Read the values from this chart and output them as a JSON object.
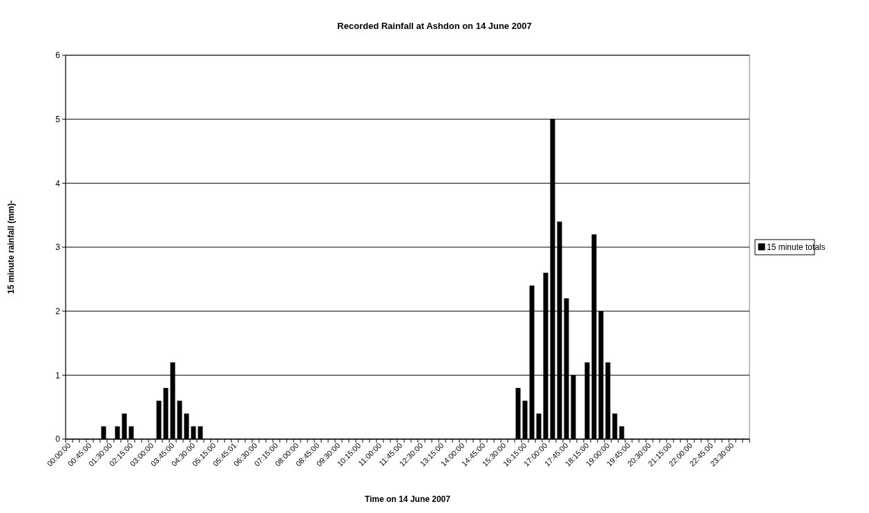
{
  "chart_data": {
    "type": "bar",
    "title": "Recorded Rainfall at Ashdon on 14 June 2007",
    "xlabel": "Time on 14 June 2007",
    "ylabel": "15 minute rainfall (mm)-",
    "categories": [
      "00:00:00",
      null,
      null,
      "00:45:00",
      null,
      null,
      "01:30:00",
      null,
      null,
      "02:15:00",
      null,
      null,
      "03:00:00",
      null,
      null,
      "03:45:00",
      null,
      null,
      "04:30:00",
      null,
      null,
      "05:15:00",
      null,
      null,
      "05:45:01",
      null,
      null,
      "06:30:00",
      null,
      null,
      "07:15:00",
      null,
      null,
      "08:00:00",
      null,
      null,
      "08:45:00",
      null,
      null,
      "09:30:00",
      null,
      null,
      "10:15:00",
      null,
      null,
      "11:00:00",
      null,
      null,
      "11:45:00",
      null,
      null,
      "12:30:00",
      null,
      null,
      "13:15:00",
      null,
      null,
      "14:00:00",
      null,
      null,
      "14:45:00",
      null,
      null,
      "15:30:00",
      null,
      null,
      "16:15:00",
      null,
      null,
      "17:00:00",
      null,
      null,
      "17:45:00",
      null,
      null,
      "18:15:00",
      null,
      null,
      "19:00:00",
      null,
      null,
      "19:45:00",
      null,
      null,
      "20:30:00",
      null,
      null,
      "21:15:00",
      null,
      null,
      "22:00:00",
      null,
      null,
      "22:45:00",
      null,
      null,
      "23:30:00",
      null,
      null
    ],
    "series": [
      {
        "name": "15 minute totals",
        "color": "#000000",
        "values": [
          0,
          0,
          0,
          0,
          0,
          0.2,
          0,
          0.2,
          0.4,
          0.2,
          0,
          0,
          0,
          0.6,
          0.8,
          1.2,
          0.6,
          0.4,
          0.2,
          0.2,
          0,
          0,
          0,
          0,
          0,
          0,
          0,
          0,
          0,
          0,
          0,
          0,
          0,
          0,
          0,
          0,
          0,
          0,
          0,
          0,
          0,
          0,
          0,
          0,
          0,
          0,
          0,
          0,
          0,
          0,
          0,
          0,
          0,
          0,
          0,
          0,
          0,
          0,
          0,
          0,
          0,
          0,
          0,
          0,
          0,
          0.8,
          0.6,
          2.4,
          0.4,
          2.6,
          5,
          3.4,
          2.2,
          1,
          0,
          1.2,
          3.2,
          2,
          1.2,
          0.4,
          0.2,
          0,
          0,
          0,
          0,
          0,
          0,
          0,
          0,
          0,
          0,
          0,
          0,
          0,
          0,
          0,
          0,
          0,
          0
        ]
      }
    ],
    "ylim": [
      0,
      6
    ],
    "yticks": [
      0,
      1,
      2,
      3,
      4,
      5,
      6
    ],
    "grid": "y",
    "legend": "right"
  }
}
